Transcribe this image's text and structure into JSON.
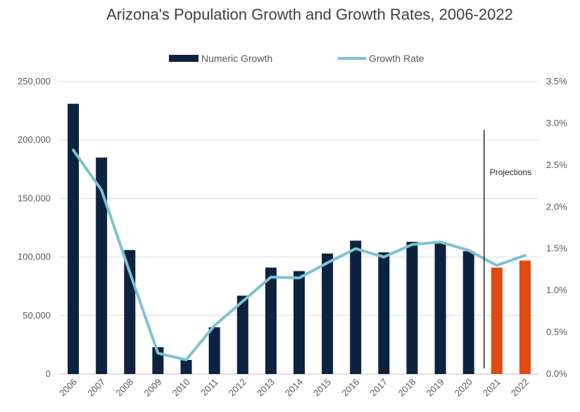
{
  "chart_data": {
    "type": "bar",
    "title": "Arizona's Population Growth and Growth Rates, 2006-2022",
    "categories": [
      "2006",
      "2007",
      "2008",
      "2009",
      "2010",
      "2011",
      "2012",
      "2013",
      "2014",
      "2015",
      "2016",
      "2017",
      "2018",
      "2019",
      "2020",
      "2021",
      "2022"
    ],
    "series": [
      {
        "name": "Numeric Growth",
        "kind": "bar",
        "axis": "left",
        "color": "#0c2340",
        "projection_color": "#e04b12",
        "values": [
          231000,
          185000,
          106000,
          23000,
          12000,
          40000,
          67000,
          91000,
          88000,
          103000,
          114000,
          104000,
          113000,
          113000,
          105000,
          91000,
          97000
        ]
      },
      {
        "name": "Growth Rate",
        "kind": "line",
        "axis": "right",
        "color": "#7cc2d3",
        "values": [
          0.0268,
          0.022,
          0.0122,
          0.0025,
          0.0017,
          0.0058,
          0.0087,
          0.0116,
          0.0115,
          0.0133,
          0.015,
          0.014,
          0.0155,
          0.0158,
          0.0148,
          0.013,
          0.0142
        ]
      }
    ],
    "projected_categories": [
      "2021",
      "2022"
    ],
    "left_axis": {
      "ylim": [
        0,
        250000
      ],
      "ticks": [
        "0",
        "50,000",
        "100,000",
        "150,000",
        "200,000",
        "250,000"
      ]
    },
    "right_axis": {
      "ylim": [
        0,
        0.035
      ],
      "ticks": [
        "0.0%",
        "0.5%",
        "1.0%",
        "1.5%",
        "2.0%",
        "2.5%",
        "3.0%",
        "3.5%"
      ]
    },
    "annotation": {
      "label": "Projections"
    },
    "grid": true,
    "legend_position": "top-center"
  }
}
